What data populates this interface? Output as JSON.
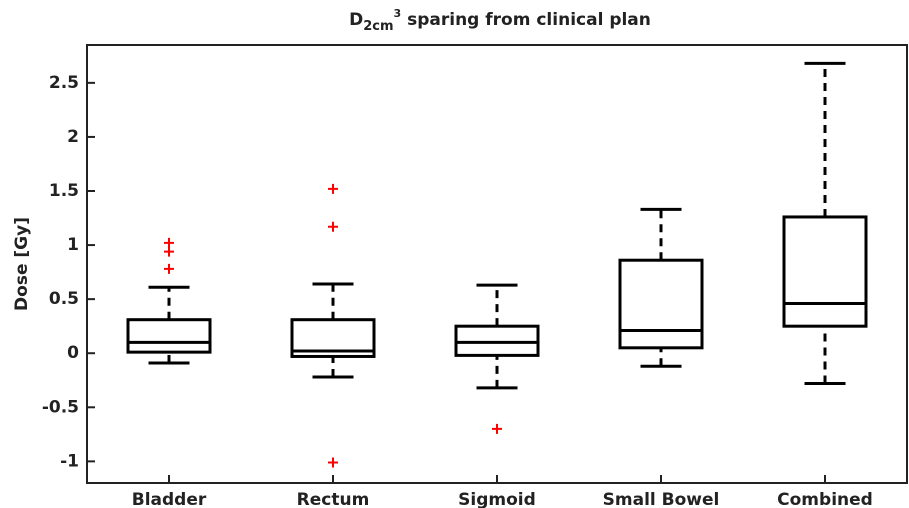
{
  "chart_data": {
    "type": "box",
    "title": {
      "base": "D",
      "subscript": "2cm",
      "superscript": "3",
      "rest": " sparing from clinical plan"
    },
    "y_label": "Dose [Gy]",
    "categories": [
      "Bladder",
      "Rectum",
      "Sigmoid",
      "Small Bowel",
      "Combined"
    ],
    "whisker_low": [
      -0.09,
      -0.22,
      -0.32,
      -0.12,
      -0.28
    ],
    "q1": [
      0.01,
      -0.03,
      -0.02,
      0.05,
      0.25
    ],
    "median": [
      0.1,
      0.02,
      0.1,
      0.21,
      0.46
    ],
    "q3": [
      0.31,
      0.31,
      0.25,
      0.86,
      1.26
    ],
    "whisker_high": [
      0.61,
      0.64,
      0.63,
      1.33,
      2.68
    ],
    "outliers": [
      [
        0.78,
        0.94,
        1.02
      ],
      [
        1.17,
        1.52,
        -1.01
      ],
      [
        -0.7
      ],
      [],
      []
    ],
    "box_color": "#000000",
    "outlier_color": "#ff0000",
    "ylim": [
      -1.2,
      2.85
    ],
    "yticks": [
      -1,
      -0.5,
      0,
      0.5,
      1,
      1.5,
      2,
      2.5
    ],
    "grid": false
  }
}
